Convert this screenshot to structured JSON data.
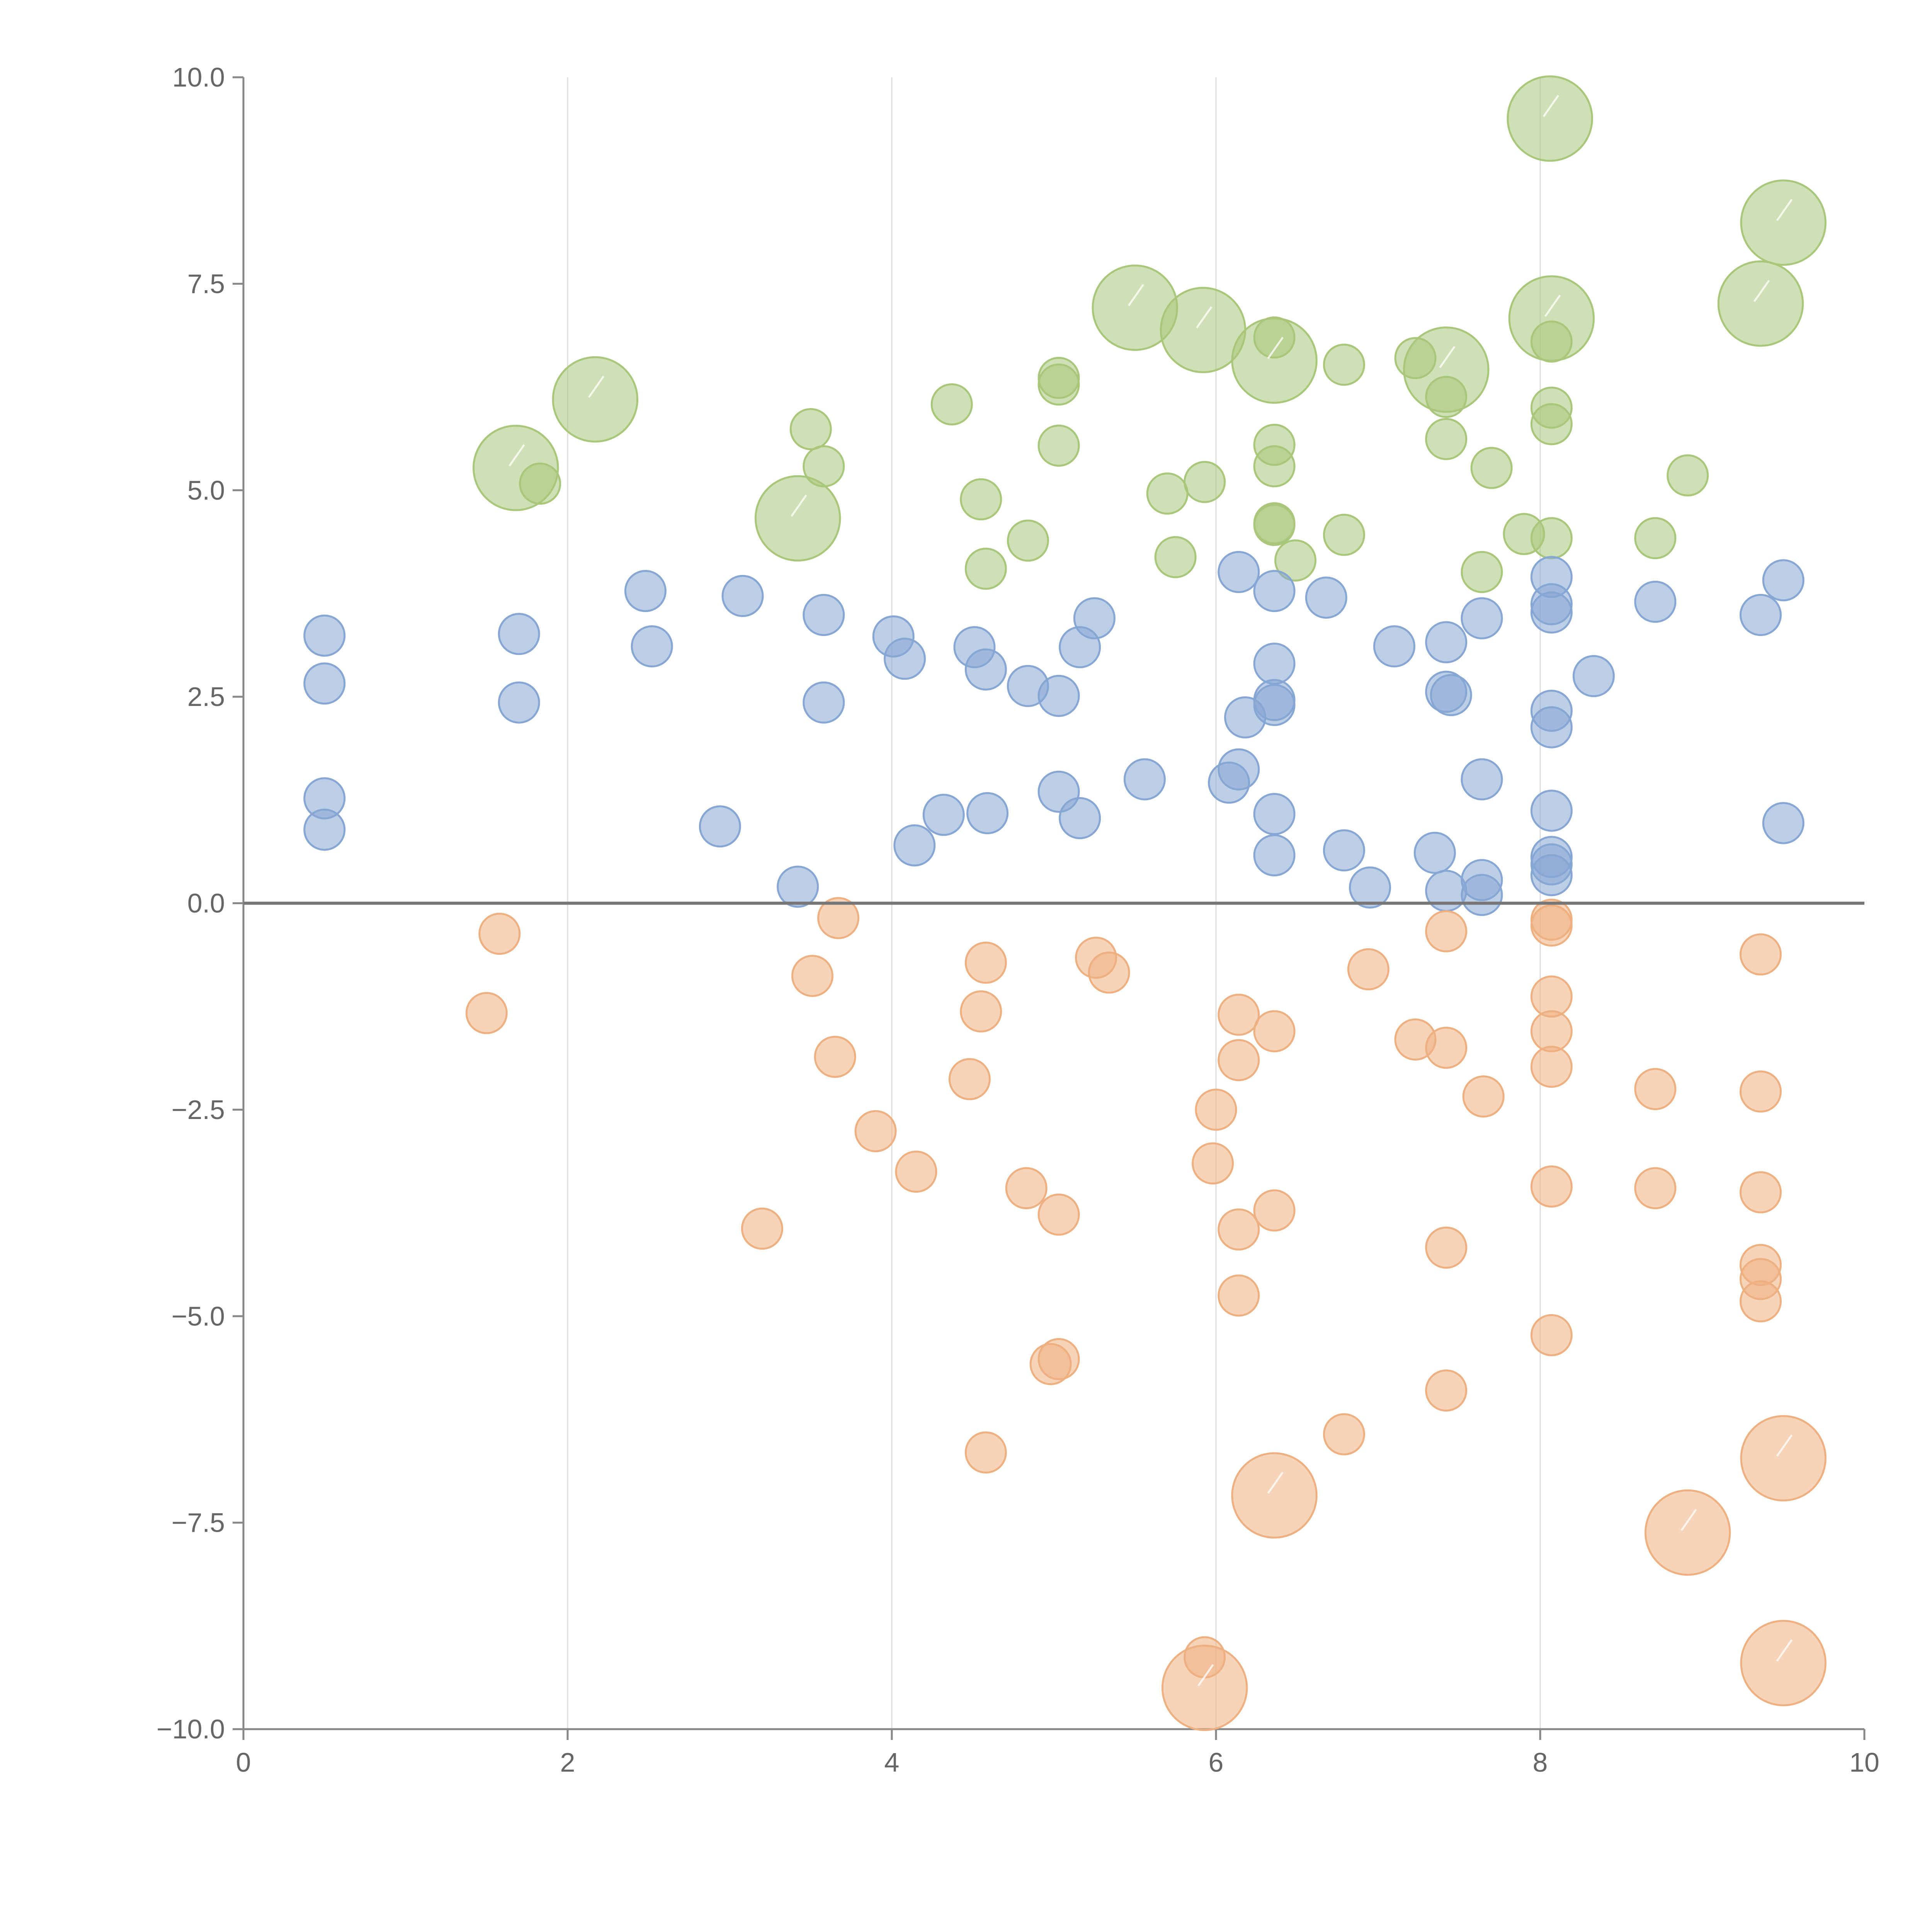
{
  "chart_data": {
    "type": "scatter",
    "title": "",
    "xlabel": "",
    "ylabel": "",
    "xlim": [
      0,
      10
    ],
    "ylim": [
      -10,
      10
    ],
    "x_ticks": [
      0,
      2,
      4,
      6,
      8,
      10
    ],
    "x_tick_labels": [
      "0",
      "2",
      "4",
      "6",
      "8",
      "10"
    ],
    "y_ticks": [
      10,
      7.5,
      5,
      2.5,
      0,
      -2.5,
      -5,
      -7.5,
      -10
    ],
    "y_tick_labels": [
      "10.0",
      "7.5",
      "5.0",
      "2.5",
      "0.0",
      "−2.5",
      "−5.0",
      "−7.5",
      "−10.0"
    ],
    "grid": "vertical",
    "reference_line_y": 0,
    "legend": "none",
    "series": [
      {
        "name": "green",
        "color": "#a9c77a",
        "points": [
          {
            "x": 1.68,
            "y": 5.27,
            "size": 2.1
          },
          {
            "x": 1.83,
            "y": 5.08,
            "size": 1
          },
          {
            "x": 2.17,
            "y": 6.1,
            "size": 2.1
          },
          {
            "x": 3.42,
            "y": 4.66,
            "size": 2.1
          },
          {
            "x": 3.5,
            "y": 5.74,
            "size": 1
          },
          {
            "x": 3.58,
            "y": 5.29,
            "size": 1
          },
          {
            "x": 4.37,
            "y": 6.04,
            "size": 1
          },
          {
            "x": 4.55,
            "y": 4.89,
            "size": 1
          },
          {
            "x": 4.58,
            "y": 4.05,
            "size": 1
          },
          {
            "x": 4.84,
            "y": 4.39,
            "size": 1
          },
          {
            "x": 5.03,
            "y": 6.36,
            "size": 1
          },
          {
            "x": 5.03,
            "y": 6.28,
            "size": 1
          },
          {
            "x": 5.03,
            "y": 5.54,
            "size": 1
          },
          {
            "x": 5.5,
            "y": 7.21,
            "size": 2.1
          },
          {
            "x": 5.7,
            "y": 4.96,
            "size": 1
          },
          {
            "x": 5.75,
            "y": 4.19,
            "size": 1
          },
          {
            "x": 5.92,
            "y": 6.94,
            "size": 2.1
          },
          {
            "x": 5.93,
            "y": 5.1,
            "size": 1
          },
          {
            "x": 6.36,
            "y": 6.85,
            "size": 1
          },
          {
            "x": 6.36,
            "y": 6.57,
            "size": 2.1
          },
          {
            "x": 6.36,
            "y": 5.55,
            "size": 1
          },
          {
            "x": 6.36,
            "y": 5.29,
            "size": 1
          },
          {
            "x": 6.36,
            "y": 4.6,
            "size": 1
          },
          {
            "x": 6.36,
            "y": 4.58,
            "size": 1
          },
          {
            "x": 6.49,
            "y": 4.15,
            "size": 1
          },
          {
            "x": 6.79,
            "y": 6.52,
            "size": 1
          },
          {
            "x": 6.79,
            "y": 4.46,
            "size": 1
          },
          {
            "x": 7.23,
            "y": 6.6,
            "size": 1
          },
          {
            "x": 7.42,
            "y": 6.46,
            "size": 2.1
          },
          {
            "x": 7.42,
            "y": 6.13,
            "size": 1
          },
          {
            "x": 7.42,
            "y": 5.62,
            "size": 1
          },
          {
            "x": 7.64,
            "y": 4.01,
            "size": 1
          },
          {
            "x": 7.7,
            "y": 5.27,
            "size": 1
          },
          {
            "x": 7.9,
            "y": 4.47,
            "size": 1
          },
          {
            "x": 8.06,
            "y": 9.5,
            "size": 2.1
          },
          {
            "x": 8.07,
            "y": 7.08,
            "size": 2.1
          },
          {
            "x": 8.07,
            "y": 6.8,
            "size": 1
          },
          {
            "x": 8.07,
            "y": 6.0,
            "size": 1
          },
          {
            "x": 8.07,
            "y": 5.8,
            "size": 1
          },
          {
            "x": 8.07,
            "y": 4.42,
            "size": 1
          },
          {
            "x": 8.71,
            "y": 4.42,
            "size": 1
          },
          {
            "x": 8.91,
            "y": 5.18,
            "size": 1
          },
          {
            "x": 9.36,
            "y": 7.26,
            "size": 2.1
          },
          {
            "x": 9.5,
            "y": 8.24,
            "size": 2.1
          }
        ]
      },
      {
        "name": "blue",
        "color": "#86a6d3",
        "points": [
          {
            "x": 0.5,
            "y": 3.24,
            "size": 1
          },
          {
            "x": 0.5,
            "y": 2.66,
            "size": 1
          },
          {
            "x": 0.5,
            "y": 1.27,
            "size": 1
          },
          {
            "x": 0.5,
            "y": 0.89,
            "size": 1
          },
          {
            "x": 1.7,
            "y": 3.26,
            "size": 1
          },
          {
            "x": 1.7,
            "y": 2.43,
            "size": 1
          },
          {
            "x": 2.48,
            "y": 3.78,
            "size": 1
          },
          {
            "x": 2.52,
            "y": 3.11,
            "size": 1
          },
          {
            "x": 2.94,
            "y": 0.93,
            "size": 1
          },
          {
            "x": 3.08,
            "y": 3.72,
            "size": 1
          },
          {
            "x": 3.42,
            "y": 0.2,
            "size": 1
          },
          {
            "x": 3.58,
            "y": 3.49,
            "size": 1
          },
          {
            "x": 3.58,
            "y": 2.43,
            "size": 1
          },
          {
            "x": 4.01,
            "y": 3.23,
            "size": 1
          },
          {
            "x": 4.08,
            "y": 2.96,
            "size": 1
          },
          {
            "x": 4.14,
            "y": 0.7,
            "size": 1
          },
          {
            "x": 4.32,
            "y": 1.07,
            "size": 1
          },
          {
            "x": 4.51,
            "y": 3.1,
            "size": 1
          },
          {
            "x": 4.58,
            "y": 2.83,
            "size": 1
          },
          {
            "x": 4.59,
            "y": 1.09,
            "size": 1
          },
          {
            "x": 4.84,
            "y": 2.63,
            "size": 1
          },
          {
            "x": 5.03,
            "y": 2.51,
            "size": 1
          },
          {
            "x": 5.03,
            "y": 1.35,
            "size": 1
          },
          {
            "x": 5.16,
            "y": 3.1,
            "size": 1
          },
          {
            "x": 5.16,
            "y": 1.03,
            "size": 1
          },
          {
            "x": 5.25,
            "y": 3.45,
            "size": 1
          },
          {
            "x": 5.56,
            "y": 1.5,
            "size": 1
          },
          {
            "x": 6.08,
            "y": 1.46,
            "size": 1
          },
          {
            "x": 6.14,
            "y": 4.01,
            "size": 1
          },
          {
            "x": 6.14,
            "y": 1.62,
            "size": 1
          },
          {
            "x": 6.18,
            "y": 2.25,
            "size": 1
          },
          {
            "x": 6.36,
            "y": 3.78,
            "size": 1
          },
          {
            "x": 6.36,
            "y": 2.9,
            "size": 1
          },
          {
            "x": 6.36,
            "y": 2.46,
            "size": 1
          },
          {
            "x": 6.36,
            "y": 2.4,
            "size": 1
          },
          {
            "x": 6.36,
            "y": 1.08,
            "size": 1
          },
          {
            "x": 6.36,
            "y": 0.58,
            "size": 1
          },
          {
            "x": 6.68,
            "y": 3.7,
            "size": 1
          },
          {
            "x": 6.79,
            "y": 0.64,
            "size": 1
          },
          {
            "x": 6.95,
            "y": 0.19,
            "size": 1
          },
          {
            "x": 7.1,
            "y": 3.11,
            "size": 1
          },
          {
            "x": 7.35,
            "y": 0.61,
            "size": 1
          },
          {
            "x": 7.42,
            "y": 3.16,
            "size": 1
          },
          {
            "x": 7.42,
            "y": 2.56,
            "size": 1
          },
          {
            "x": 7.42,
            "y": 0.15,
            "size": 1
          },
          {
            "x": 7.45,
            "y": 2.52,
            "size": 1
          },
          {
            "x": 7.64,
            "y": 3.45,
            "size": 1
          },
          {
            "x": 7.64,
            "y": 1.5,
            "size": 1
          },
          {
            "x": 7.64,
            "y": 0.28,
            "size": 1
          },
          {
            "x": 7.64,
            "y": 0.1,
            "size": 1
          },
          {
            "x": 8.07,
            "y": 3.95,
            "size": 1
          },
          {
            "x": 8.07,
            "y": 3.62,
            "size": 1
          },
          {
            "x": 8.07,
            "y": 3.52,
            "size": 1
          },
          {
            "x": 8.07,
            "y": 2.33,
            "size": 1
          },
          {
            "x": 8.07,
            "y": 2.13,
            "size": 1
          },
          {
            "x": 8.07,
            "y": 1.12,
            "size": 1
          },
          {
            "x": 8.07,
            "y": 0.56,
            "size": 1
          },
          {
            "x": 8.07,
            "y": 0.47,
            "size": 1
          },
          {
            "x": 8.07,
            "y": 0.34,
            "size": 1
          },
          {
            "x": 8.33,
            "y": 2.75,
            "size": 1
          },
          {
            "x": 8.71,
            "y": 3.65,
            "size": 1
          },
          {
            "x": 9.36,
            "y": 3.49,
            "size": 1
          },
          {
            "x": 9.5,
            "y": 3.91,
            "size": 1
          },
          {
            "x": 9.5,
            "y": 0.97,
            "size": 1
          }
        ]
      },
      {
        "name": "orange",
        "color": "#eeb081",
        "points": [
          {
            "x": 1.5,
            "y": -1.33,
            "size": 1
          },
          {
            "x": 1.58,
            "y": -0.37,
            "size": 1
          },
          {
            "x": 3.2,
            "y": -3.94,
            "size": 1
          },
          {
            "x": 3.51,
            "y": -0.88,
            "size": 1
          },
          {
            "x": 3.65,
            "y": -1.86,
            "size": 1
          },
          {
            "x": 3.67,
            "y": -0.18,
            "size": 1
          },
          {
            "x": 3.9,
            "y": -2.76,
            "size": 1
          },
          {
            "x": 4.15,
            "y": -3.25,
            "size": 1
          },
          {
            "x": 4.48,
            "y": -2.13,
            "size": 1
          },
          {
            "x": 4.55,
            "y": -1.31,
            "size": 1
          },
          {
            "x": 4.58,
            "y": -0.72,
            "size": 1
          },
          {
            "x": 4.58,
            "y": -6.65,
            "size": 1
          },
          {
            "x": 4.83,
            "y": -3.45,
            "size": 1
          },
          {
            "x": 4.98,
            "y": -5.58,
            "size": 1
          },
          {
            "x": 5.03,
            "y": -3.77,
            "size": 1
          },
          {
            "x": 5.03,
            "y": -5.52,
            "size": 1
          },
          {
            "x": 5.26,
            "y": -0.66,
            "size": 1
          },
          {
            "x": 5.34,
            "y": -0.84,
            "size": 1
          },
          {
            "x": 5.93,
            "y": -9.13,
            "size": 1
          },
          {
            "x": 5.93,
            "y": -9.5,
            "size": 2.1
          },
          {
            "x": 5.98,
            "y": -3.15,
            "size": 1
          },
          {
            "x": 6.0,
            "y": -2.5,
            "size": 1
          },
          {
            "x": 6.14,
            "y": -1.35,
            "size": 1
          },
          {
            "x": 6.14,
            "y": -1.9,
            "size": 1
          },
          {
            "x": 6.14,
            "y": -3.95,
            "size": 1
          },
          {
            "x": 6.14,
            "y": -4.75,
            "size": 1
          },
          {
            "x": 6.36,
            "y": -1.55,
            "size": 1
          },
          {
            "x": 6.36,
            "y": -3.72,
            "size": 1
          },
          {
            "x": 6.36,
            "y": -7.17,
            "size": 2.1
          },
          {
            "x": 6.79,
            "y": -6.43,
            "size": 1
          },
          {
            "x": 6.94,
            "y": -0.8,
            "size": 1
          },
          {
            "x": 7.23,
            "y": -1.65,
            "size": 1
          },
          {
            "x": 7.42,
            "y": -0.34,
            "size": 1
          },
          {
            "x": 7.42,
            "y": -1.75,
            "size": 1
          },
          {
            "x": 7.42,
            "y": -4.17,
            "size": 1
          },
          {
            "x": 7.42,
            "y": -5.9,
            "size": 1
          },
          {
            "x": 7.65,
            "y": -2.34,
            "size": 1
          },
          {
            "x": 8.07,
            "y": -0.2,
            "size": 1
          },
          {
            "x": 8.07,
            "y": -0.27,
            "size": 1
          },
          {
            "x": 8.07,
            "y": -1.13,
            "size": 1
          },
          {
            "x": 8.07,
            "y": -1.55,
            "size": 1
          },
          {
            "x": 8.07,
            "y": -1.98,
            "size": 1
          },
          {
            "x": 8.07,
            "y": -3.43,
            "size": 1
          },
          {
            "x": 8.07,
            "y": -5.23,
            "size": 1
          },
          {
            "x": 8.71,
            "y": -2.25,
            "size": 1
          },
          {
            "x": 8.71,
            "y": -3.45,
            "size": 1
          },
          {
            "x": 8.91,
            "y": -7.62,
            "size": 2.1
          },
          {
            "x": 9.36,
            "y": -0.62,
            "size": 1
          },
          {
            "x": 9.36,
            "y": -2.28,
            "size": 1
          },
          {
            "x": 9.36,
            "y": -3.5,
            "size": 1
          },
          {
            "x": 9.36,
            "y": -4.38,
            "size": 1
          },
          {
            "x": 9.36,
            "y": -4.55,
            "size": 1
          },
          {
            "x": 9.36,
            "y": -4.82,
            "size": 1
          },
          {
            "x": 9.5,
            "y": -6.72,
            "size": 2.1
          },
          {
            "x": 9.5,
            "y": -9.2,
            "size": 2.1
          }
        ]
      }
    ]
  }
}
